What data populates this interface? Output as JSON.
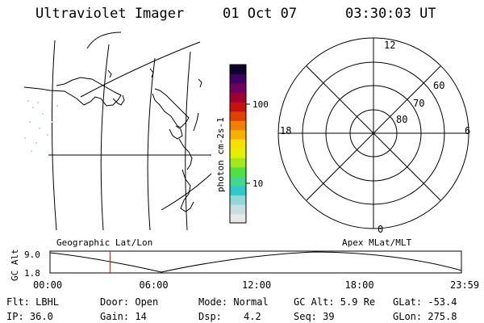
{
  "header": {
    "instrument": "Ultraviolet Imager",
    "date": "01 Oct 07",
    "time": "03:30:03 UT"
  },
  "colorbar": {
    "unit_label": "photon cm-2s-1",
    "ticks": [
      {
        "label": "100",
        "frac": 0.75
      },
      {
        "label": "10",
        "frac": 0.25
      }
    ],
    "colors": [
      "#e8e8e8",
      "#c8dde0",
      "#90d8d8",
      "#30c8c8",
      "#40d890",
      "#50e040",
      "#a0e820",
      "#e0f000",
      "#f8e000",
      "#f8b000",
      "#f08000",
      "#e04000",
      "#c81010",
      "#a00030",
      "#700060",
      "#400060",
      "#100030"
    ]
  },
  "polar_plot": {
    "mlt_labels": {
      "top": "12",
      "right": "6",
      "bottom": "0",
      "left": "18"
    },
    "lat_labels": [
      "60",
      "70",
      "80"
    ]
  },
  "altitude_plot": {
    "left_title": "Geographic Lat/Lon",
    "right_title": "Apex MLat/MLT",
    "ylabel": "GC Alt",
    "y_ticks": [
      "9.0",
      "1.8"
    ],
    "x_ticks": [
      "00:00",
      "06:00",
      "12:00",
      "18:00",
      "23:59"
    ],
    "current_time_hours": 3.5,
    "marker_color": "#ff0000"
  },
  "status": {
    "filter": "Flt: LBHL",
    "door": "Door: Open",
    "mode": "Mode: Normal",
    "gc_alt": "GC Alt: 5.9 Re",
    "glat": "GLat: -53.4",
    "ip": "IP: 36.0",
    "gain": "Gain: 14",
    "dsp_label": "Dsp:",
    "dsp_value": "4.2",
    "seq": "Seq: 39",
    "glon": "GLon: 275.8"
  }
}
